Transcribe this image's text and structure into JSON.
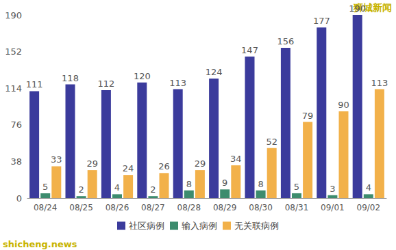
{
  "chart_data": {
    "type": "bar",
    "categories": [
      "08/24",
      "08/25",
      "08/26",
      "08/27",
      "08/28",
      "08/29",
      "08/30",
      "08/31",
      "09/01",
      "09/02"
    ],
    "series": [
      {
        "name": "社区病例",
        "color": "#3b3b9c",
        "values": [
          111,
          118,
          112,
          120,
          113,
          124,
          147,
          156,
          177,
          190
        ]
      },
      {
        "name": "输入病例",
        "color": "#3d8c6e",
        "values": [
          5,
          2,
          4,
          2,
          8,
          9,
          8,
          5,
          3,
          4
        ]
      },
      {
        "name": "无关联病例",
        "color": "#f2b14a",
        "values": [
          33,
          29,
          24,
          26,
          29,
          34,
          52,
          79,
          90,
          113
        ]
      }
    ],
    "ylim": [
      0,
      190
    ],
    "yticks": [
      0,
      38,
      76,
      114,
      152,
      190
    ],
    "grid": false,
    "legend": "bottom",
    "data_labels": true,
    "annotations": [
      "狮城新闻",
      "shicheng.news"
    ]
  }
}
